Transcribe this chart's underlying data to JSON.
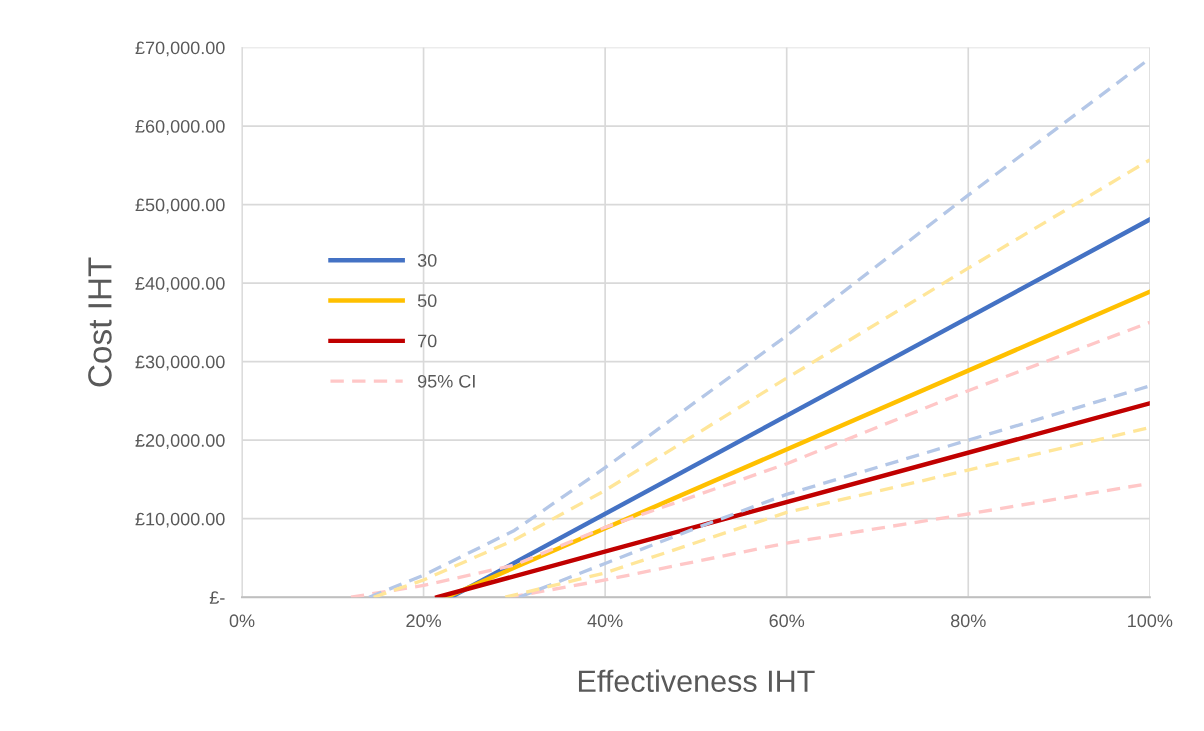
{
  "chart_data": {
    "type": "line",
    "xlabel": "Effectiveness IHT",
    "ylabel": "Cost IHT",
    "xlim": [
      0,
      100
    ],
    "xticks": [
      {
        "value": 0,
        "label": "0%"
      },
      {
        "value": 20,
        "label": "20%"
      },
      {
        "value": 40,
        "label": "40%"
      },
      {
        "value": 60,
        "label": "60%"
      },
      {
        "value": 80,
        "label": "80%"
      },
      {
        "value": 100,
        "label": "100%"
      }
    ],
    "ylim": [
      0,
      70000
    ],
    "yticks": [
      {
        "value": 0,
        "label": "£-"
      },
      {
        "value": 10000,
        "label": "£10,000.00"
      },
      {
        "value": 20000,
        "label": "£20,000.00"
      },
      {
        "value": 30000,
        "label": "£30,000.00"
      },
      {
        "value": 40000,
        "label": "£40,000.00"
      },
      {
        "value": 50000,
        "label": "£50,000.00"
      },
      {
        "value": 60000,
        "label": "£60,000.00"
      },
      {
        "value": 70000,
        "label": "£70,000.00"
      }
    ],
    "grid": true,
    "legend": "center left",
    "marker": "none",
    "series": [
      {
        "name": "30",
        "color": "#4472c4",
        "line_style": "solid",
        "x": [
          23,
          100
        ],
        "values": [
          0,
          48100
        ]
      },
      {
        "name": "50",
        "color": "#ffc000",
        "line_style": "solid",
        "x": [
          22.5,
          100
        ],
        "values": [
          0,
          38900
        ]
      },
      {
        "name": "70",
        "color": "#c00000",
        "line_style": "solid",
        "x": [
          21.5,
          100
        ],
        "values": [
          0,
          24700
        ]
      },
      {
        "name": "95% CI",
        "color": "#ffc7c7",
        "line_style": "dashed",
        "x": [
          12,
          20,
          30,
          40,
          60,
          80,
          100
        ],
        "values": [
          0,
          1500,
          4100,
          8900,
          17000,
          26300,
          35000
        ]
      },
      {
        "color": "#ffc7c7",
        "line_style": "dashed",
        "x": [
          29.5,
          40,
          60,
          80,
          100
        ],
        "values": [
          0,
          2200,
          6900,
          10600,
          14500
        ]
      },
      {
        "color": "#b4c7e7",
        "line_style": "dashed",
        "x": [
          14,
          20,
          30,
          40,
          60,
          80,
          100
        ],
        "values": [
          0,
          2800,
          8500,
          16500,
          33300,
          51200,
          68600
        ]
      },
      {
        "color": "#b4c7e7",
        "line_style": "dashed",
        "x": [
          30.5,
          40,
          50,
          60,
          80,
          100
        ],
        "values": [
          0,
          4300,
          8800,
          13100,
          20000,
          26900
        ]
      },
      {
        "color": "#ffe699",
        "line_style": "dashed",
        "x": [
          14.5,
          20,
          30,
          40,
          60,
          80,
          100
        ],
        "values": [
          0,
          2200,
          7300,
          13600,
          27900,
          41900,
          55700
        ]
      },
      {
        "color": "#ffe699",
        "line_style": "dashed",
        "x": [
          29,
          40,
          60,
          80,
          100
        ],
        "values": [
          0,
          3100,
          10800,
          16200,
          21600
        ]
      }
    ]
  }
}
